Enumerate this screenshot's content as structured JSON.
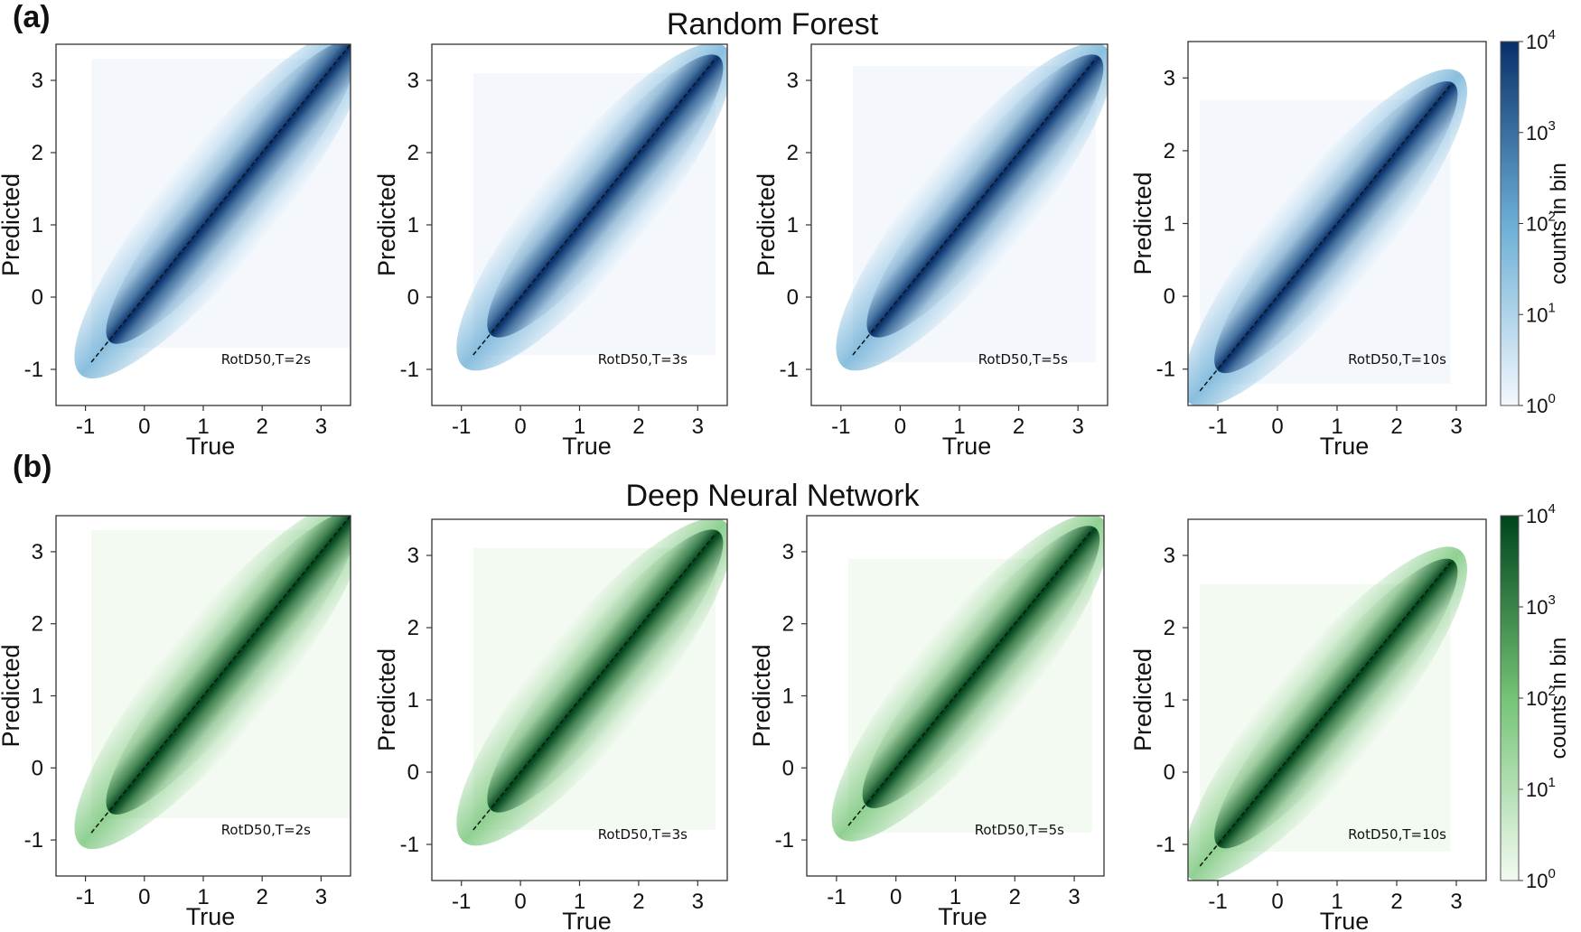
{
  "panel_labels": [
    "(a)",
    "(b)"
  ],
  "rows": [
    {
      "title": "Random Forest",
      "colorbar_label": "counts in bin",
      "colors": {
        "light": "#f4f8fd",
        "mid": "#6baed6",
        "dark": "#08306b"
      }
    },
    {
      "title": "Deep Neural Network",
      "colorbar_label": "counts in bin",
      "colors": {
        "light": "#f3faf1",
        "mid": "#74c476",
        "dark": "#00441b"
      }
    }
  ],
  "colorbar_ticks": [
    {
      "base": "10",
      "exp": "4"
    },
    {
      "base": "10",
      "exp": "3"
    },
    {
      "base": "10",
      "exp": "2"
    },
    {
      "base": "10",
      "exp": "1"
    },
    {
      "base": "10",
      "exp": "0"
    }
  ],
  "chart_data": [
    {
      "type": "heatmap",
      "title": "Random Forest",
      "annotation": "RotD50,T=2s",
      "xlabel": "True",
      "ylabel": "Predicted",
      "xlim": [
        -1.5,
        3.5
      ],
      "ylim": [
        -1.5,
        3.5
      ],
      "xticks": [
        -1,
        0,
        1,
        2,
        3
      ],
      "yticks": [
        -1,
        0,
        1,
        2,
        3
      ],
      "x_range": [
        -0.9,
        3.5
      ],
      "y_range": [
        -0.7,
        3.3
      ],
      "identity_line": [
        -0.9,
        3.5
      ],
      "colorbar": {
        "label": "counts in bin",
        "scale": "log",
        "range": [
          1,
          10000
        ]
      }
    },
    {
      "type": "heatmap",
      "title": "Random Forest",
      "annotation": "RotD50,T=3s",
      "xlabel": "True",
      "ylabel": "Predicted",
      "xlim": [
        -1.5,
        3.5
      ],
      "ylim": [
        -1.5,
        3.5
      ],
      "xticks": [
        -1,
        0,
        1,
        2,
        3
      ],
      "yticks": [
        -1,
        0,
        1,
        2,
        3
      ],
      "x_range": [
        -0.8,
        3.3
      ],
      "y_range": [
        -0.8,
        3.1
      ],
      "identity_line": [
        -0.8,
        3.3
      ],
      "colorbar": {
        "label": "counts in bin",
        "scale": "log",
        "range": [
          1,
          10000
        ]
      }
    },
    {
      "type": "heatmap",
      "title": "Random Forest",
      "annotation": "RotD50,T=5s",
      "xlabel": "True",
      "ylabel": "Predicted",
      "xlim": [
        -1.5,
        3.5
      ],
      "ylim": [
        -1.5,
        3.5
      ],
      "xticks": [
        -1,
        0,
        1,
        2,
        3
      ],
      "yticks": [
        -1,
        0,
        1,
        2,
        3
      ],
      "x_range": [
        -0.8,
        3.3
      ],
      "y_range": [
        -0.9,
        3.2
      ],
      "identity_line": [
        -0.8,
        3.3
      ],
      "colorbar": {
        "label": "counts in bin",
        "scale": "log",
        "range": [
          1,
          10000
        ]
      }
    },
    {
      "type": "heatmap",
      "title": "Random Forest",
      "annotation": "RotD50,T=10s",
      "xlabel": "True",
      "ylabel": "Predicted",
      "xlim": [
        -1.5,
        3.5
      ],
      "ylim": [
        -1.5,
        3.5
      ],
      "xticks": [
        -1,
        0,
        1,
        2,
        3
      ],
      "yticks": [
        -1,
        0,
        1,
        2,
        3
      ],
      "x_range": [
        -1.3,
        2.9
      ],
      "y_range": [
        -1.2,
        2.7
      ],
      "identity_line": [
        -1.3,
        2.9
      ],
      "colorbar": {
        "label": "counts in bin",
        "scale": "log",
        "range": [
          1,
          10000
        ]
      }
    },
    {
      "type": "heatmap",
      "title": "Deep Neural Network",
      "annotation": "RotD50,T=2s",
      "xlabel": "True",
      "ylabel": "Predicted",
      "xlim": [
        -1.5,
        3.5
      ],
      "ylim": [
        -1.5,
        3.5
      ],
      "xticks": [
        -1,
        0,
        1,
        2,
        3
      ],
      "yticks": [
        -1,
        0,
        1,
        2,
        3
      ],
      "x_range": [
        -0.9,
        3.5
      ],
      "y_range": [
        -0.7,
        3.3
      ],
      "identity_line": [
        -0.9,
        3.5
      ],
      "colorbar": {
        "label": "counts in bin",
        "scale": "log",
        "range": [
          1,
          10000
        ]
      }
    },
    {
      "type": "heatmap",
      "title": "Deep Neural Network",
      "annotation": "RotD50,T=3s",
      "xlabel": "True",
      "ylabel": "Predicted",
      "xlim": [
        -1.5,
        3.5
      ],
      "ylim": [
        -1.5,
        3.5
      ],
      "xticks": [
        -1,
        0,
        1,
        2,
        3
      ],
      "yticks": [
        -1,
        0,
        1,
        2,
        3
      ],
      "x_range": [
        -0.8,
        3.3
      ],
      "y_range": [
        -0.8,
        3.1
      ],
      "identity_line": [
        -0.8,
        3.3
      ],
      "colorbar": {
        "label": "counts in bin",
        "scale": "log",
        "range": [
          1,
          10000
        ]
      }
    },
    {
      "type": "heatmap",
      "title": "Deep Neural Network",
      "annotation": "RotD50,T=5s",
      "xlabel": "True",
      "ylabel": "Predicted",
      "xlim": [
        -1.5,
        3.5
      ],
      "ylim": [
        -1.5,
        3.5
      ],
      "xticks": [
        -1,
        0,
        1,
        2,
        3
      ],
      "yticks": [
        -1,
        0,
        1,
        2,
        3
      ],
      "x_range": [
        -0.8,
        3.3
      ],
      "y_range": [
        -0.9,
        2.9
      ],
      "identity_line": [
        -0.8,
        3.3
      ],
      "colorbar": {
        "label": "counts in bin",
        "scale": "log",
        "range": [
          1,
          10000
        ]
      }
    },
    {
      "type": "heatmap",
      "title": "Deep Neural Network",
      "annotation": "RotD50,T=10s",
      "xlabel": "True",
      "ylabel": "Predicted",
      "xlim": [
        -1.5,
        3.5
      ],
      "ylim": [
        -1.5,
        3.5
      ],
      "xticks": [
        -1,
        0,
        1,
        2,
        3
      ],
      "yticks": [
        -1,
        0,
        1,
        2,
        3
      ],
      "x_range": [
        -1.3,
        2.9
      ],
      "y_range": [
        -1.1,
        2.6
      ],
      "identity_line": [
        -1.3,
        2.9
      ],
      "colorbar": {
        "label": "counts in bin",
        "scale": "log",
        "range": [
          1,
          10000
        ]
      }
    }
  ]
}
